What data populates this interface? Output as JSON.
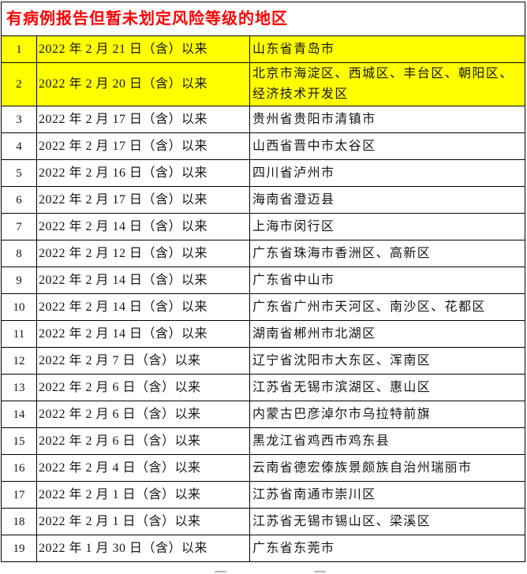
{
  "page": {
    "title": "有病例报告但暂未划定风险等级的地区"
  },
  "colors": {
    "title_text": "#fe0000",
    "highlight_row_background": "#ffff00",
    "border": "#000000",
    "body_text": "#151515"
  },
  "table": {
    "rows": [
      {
        "no": "1",
        "date": "2022 年 2 月 21 日（含）以来",
        "region": "山东省青岛市",
        "highlight": true
      },
      {
        "no": "2",
        "date": "2022 年 2 月 20 日（含）以来",
        "region": "北京市海淀区、西城区、丰台区、朝阳区、经济技术开发区",
        "highlight": true
      },
      {
        "no": "3",
        "date": "2022 年 2 月 17 日（含）以来",
        "region": "贵州省贵阳市清镇市",
        "highlight": false
      },
      {
        "no": "4",
        "date": "2022 年 2 月 17 日（含）以来",
        "region": "山西省晋中市太谷区",
        "highlight": false
      },
      {
        "no": "5",
        "date": "2022 年 2 月 16 日（含）以来",
        "region": "四川省泸州市",
        "highlight": false
      },
      {
        "no": "6",
        "date": "2022 年 2 月 17 日（含）以来",
        "region": "海南省澄迈县",
        "highlight": false
      },
      {
        "no": "7",
        "date": "2022 年 2 月 14 日（含）以来",
        "region": "上海市闵行区",
        "highlight": false
      },
      {
        "no": "8",
        "date": "2022 年 2 月 12 日（含）以来",
        "region": "广东省珠海市香洲区、高新区",
        "highlight": false
      },
      {
        "no": "9",
        "date": "2022 年 2 月 14 日（含）以来",
        "region": "广东省中山市",
        "highlight": false
      },
      {
        "no": "10",
        "date": "2022 年 2 月 14 日（含）以来",
        "region": "广东省广州市天河区、南沙区、花都区",
        "highlight": false
      },
      {
        "no": "11",
        "date": "2022 年 2 月 14 日（含）以来",
        "region": "湖南省郴州市北湖区",
        "highlight": false
      },
      {
        "no": "12",
        "date": "2022 年 2 月 7 日（含）以来",
        "region": "辽宁省沈阳市大东区、浑南区",
        "highlight": false
      },
      {
        "no": "13",
        "date": "2022 年 2 月 6 日（含）以来",
        "region": "江苏省无锡市滨湖区、惠山区",
        "highlight": false
      },
      {
        "no": "14",
        "date": "2022 年 2 月 6 日（含）以来",
        "region": "内蒙古巴彦淖尔市乌拉特前旗",
        "highlight": false
      },
      {
        "no": "15",
        "date": "2022 年 2 月 6 日（含）以来",
        "region": "黑龙江省鸡西市鸡东县",
        "highlight": false
      },
      {
        "no": "16",
        "date": "2022 年 2 月 4 日（含）以来",
        "region": "云南省德宏傣族景颇族自治州瑞丽市",
        "highlight": false
      },
      {
        "no": "17",
        "date": "2022 年 2 月 1 日（含）以来",
        "region": "江苏省南通市崇川区",
        "highlight": false
      },
      {
        "no": "18",
        "date": "2022 年 2 月 1 日（含）以来",
        "region": "江苏省无锡市锡山区、梁溪区",
        "highlight": false
      },
      {
        "no": "19",
        "date": "2022 年 1 月 30 日（含）以来",
        "region": "广东省东莞市",
        "highlight": false
      }
    ]
  }
}
